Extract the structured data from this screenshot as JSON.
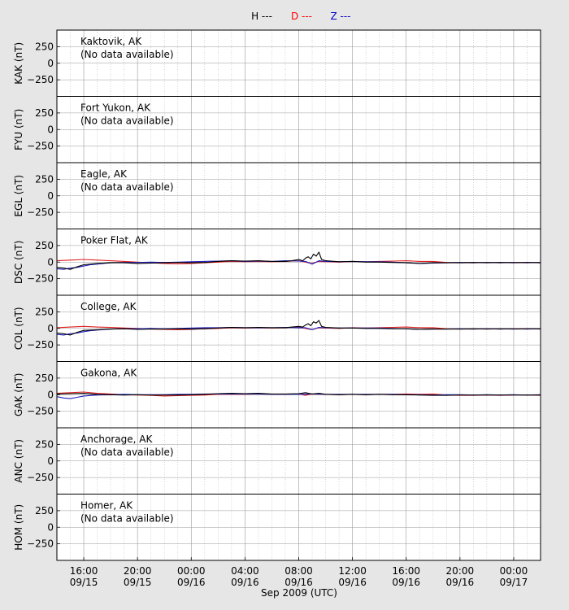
{
  "legend": [
    {
      "label": "H ---",
      "color": "#000000"
    },
    {
      "label": "D ---",
      "color": "#ff0000"
    },
    {
      "label": "Z ---",
      "color": "#0000cc"
    }
  ],
  "colors": {
    "H": "#000000",
    "D": "#e02020",
    "Z": "#2020c0",
    "background": "#e6e6e6",
    "plot": "#ffffff"
  },
  "xlabel": "Sep 2009 (UTC)",
  "no_data_text": "(No data available)",
  "chart_data": {
    "type": "line",
    "xlabel": "Sep 2009 (UTC)",
    "x_unit": "hours since 2009-09-15 00:00 UTC",
    "x_range": [
      14.0,
      50.0
    ],
    "x_ticks": [
      {
        "hour": 16,
        "time": "16:00",
        "date": "09/15"
      },
      {
        "hour": 20,
        "time": "20:00",
        "date": "09/15"
      },
      {
        "hour": 24,
        "time": "00:00",
        "date": "09/16"
      },
      {
        "hour": 28,
        "time": "04:00",
        "date": "09/16"
      },
      {
        "hour": 32,
        "time": "08:00",
        "date": "09/16"
      },
      {
        "hour": 36,
        "time": "12:00",
        "date": "09/16"
      },
      {
        "hour": 40,
        "time": "16:00",
        "date": "09/16"
      },
      {
        "hour": 44,
        "time": "20:00",
        "date": "09/16"
      },
      {
        "hour": 48,
        "time": "00:00",
        "date": "09/17"
      }
    ],
    "y_ticks": [
      250,
      0,
      -250
    ],
    "ylim": [
      -500,
      500
    ],
    "grid": true,
    "legend_position": "top-center",
    "panels": [
      {
        "station": "KAK",
        "name": "Kaktovik, AK",
        "ylabel": "KAK (nT)",
        "no_data": true,
        "series": []
      },
      {
        "station": "FYU",
        "name": "Fort Yukon, AK",
        "ylabel": "FYU (nT)",
        "no_data": true,
        "series": []
      },
      {
        "station": "EGL",
        "name": "Eagle, AK",
        "ylabel": "EGL (nT)",
        "no_data": true,
        "series": []
      },
      {
        "station": "DSC",
        "name": "Poker Flat, AK",
        "ylabel": "DSC (nT)",
        "no_data": false,
        "series": [
          {
            "name": "H",
            "x": [
              14.0,
              14.5,
              15.0,
              15.5,
              16.0,
              17.0,
              18.0,
              19.0,
              20.0,
              21.0,
              22.0,
              23.0,
              24.0,
              25.0,
              26.0,
              27.0,
              28.0,
              29.0,
              30.0,
              31.0,
              31.5,
              32.0,
              32.3,
              32.5,
              32.7,
              32.9,
              33.1,
              33.3,
              33.5,
              33.7,
              34.0,
              35.0,
              36.0,
              37.0,
              38.0,
              39.0,
              40.0,
              41.0,
              42.0,
              43.0,
              44.0,
              45.0,
              46.0,
              47.0,
              48.0,
              49.0,
              50.0
            ],
            "y": [
              -80,
              -90,
              -110,
              -70,
              -40,
              -20,
              -10,
              -10,
              -20,
              -15,
              -10,
              -5,
              -10,
              -5,
              10,
              20,
              15,
              20,
              10,
              10,
              20,
              40,
              20,
              60,
              80,
              50,
              120,
              90,
              150,
              40,
              20,
              5,
              10,
              0,
              0,
              -5,
              -10,
              -20,
              -10,
              -10,
              -10,
              -5,
              -10,
              -5,
              -10,
              -5,
              -10
            ]
          },
          {
            "name": "D",
            "x": [
              14.0,
              15.0,
              16.0,
              17.0,
              18.0,
              19.0,
              20.0,
              21.0,
              22.0,
              23.0,
              24.0,
              25.0,
              26.0,
              27.0,
              28.0,
              29.0,
              30.0,
              31.0,
              32.0,
              32.5,
              33.0,
              33.5,
              34.0,
              35.0,
              36.0,
              37.0,
              38.0,
              39.0,
              40.0,
              41.0,
              42.0,
              43.0,
              44.0,
              45.0,
              46.0,
              47.0,
              48.0,
              49.0,
              50.0
            ],
            "y": [
              20,
              30,
              40,
              30,
              20,
              10,
              0,
              -10,
              -20,
              -25,
              -20,
              -10,
              0,
              10,
              5,
              10,
              5,
              10,
              20,
              0,
              -20,
              10,
              5,
              0,
              10,
              5,
              10,
              15,
              20,
              10,
              10,
              -5,
              -10,
              -10,
              -5,
              -10,
              -5,
              -5,
              -10
            ]
          },
          {
            "name": "Z",
            "x": [
              14.0,
              14.5,
              15.0,
              15.5,
              16.0,
              16.5,
              17.0,
              18.0,
              19.0,
              20.0,
              21.0,
              22.0,
              23.0,
              24.0,
              25.0,
              26.0,
              27.0,
              28.0,
              29.0,
              30.0,
              31.0,
              32.0,
              32.5,
              33.0,
              33.5,
              34.0,
              35.0,
              36.0,
              37.0,
              38.0,
              39.0,
              40.0,
              41.0,
              42.0,
              43.0,
              44.0,
              45.0,
              46.0,
              47.0,
              48.0,
              49.0,
              50.0
            ],
            "y": [
              -100,
              -110,
              -90,
              -80,
              -60,
              -40,
              -30,
              -10,
              -5,
              -5,
              0,
              -5,
              0,
              5,
              10,
              15,
              20,
              10,
              15,
              10,
              20,
              15,
              10,
              -30,
              20,
              10,
              5,
              10,
              5,
              5,
              0,
              -10,
              -20,
              -15,
              -10,
              -5,
              -10,
              -5,
              -10,
              -5,
              -10,
              -5
            ]
          }
        ]
      },
      {
        "station": "COL",
        "name": "College, AK",
        "ylabel": "COL (nT)",
        "no_data": false,
        "series": [
          {
            "name": "H",
            "x": [
              14.0,
              14.5,
              15.0,
              15.5,
              16.0,
              17.0,
              18.0,
              19.0,
              20.0,
              21.0,
              22.0,
              23.0,
              24.0,
              25.0,
              26.0,
              27.0,
              28.0,
              29.0,
              30.0,
              31.0,
              31.5,
              32.0,
              32.3,
              32.5,
              32.7,
              32.9,
              33.1,
              33.3,
              33.5,
              33.7,
              34.0,
              35.0,
              36.0,
              37.0,
              38.0,
              39.0,
              40.0,
              41.0,
              42.0,
              43.0,
              44.0,
              45.0,
              46.0,
              47.0,
              48.0,
              49.0,
              50.0
            ],
            "y": [
              -70,
              -80,
              -100,
              -60,
              -30,
              -20,
              -10,
              -5,
              -15,
              -10,
              -10,
              -5,
              -10,
              -5,
              5,
              15,
              10,
              15,
              10,
              10,
              20,
              30,
              20,
              50,
              70,
              40,
              100,
              80,
              120,
              30,
              15,
              5,
              5,
              0,
              0,
              -5,
              -5,
              -15,
              -10,
              -10,
              -10,
              -5,
              -10,
              -5,
              -10,
              -5,
              -5
            ]
          },
          {
            "name": "D",
            "x": [
              14.0,
              15.0,
              16.0,
              17.0,
              18.0,
              19.0,
              20.0,
              21.0,
              22.0,
              23.0,
              24.0,
              25.0,
              26.0,
              27.0,
              28.0,
              29.0,
              30.0,
              31.0,
              32.0,
              32.5,
              33.0,
              33.5,
              34.0,
              35.0,
              36.0,
              37.0,
              38.0,
              39.0,
              40.0,
              41.0,
              42.0,
              43.0,
              44.0,
              45.0,
              46.0,
              47.0,
              48.0,
              49.0,
              50.0
            ],
            "y": [
              10,
              20,
              30,
              20,
              15,
              5,
              0,
              -10,
              -15,
              -20,
              -15,
              -5,
              0,
              10,
              5,
              10,
              5,
              10,
              20,
              0,
              -20,
              10,
              5,
              0,
              10,
              5,
              10,
              15,
              20,
              10,
              10,
              -5,
              -10,
              -10,
              -5,
              -10,
              -5,
              -5,
              -10
            ]
          },
          {
            "name": "Z",
            "x": [
              14.0,
              14.5,
              15.0,
              15.5,
              16.0,
              16.5,
              17.0,
              18.0,
              19.0,
              20.0,
              21.0,
              22.0,
              23.0,
              24.0,
              25.0,
              26.0,
              27.0,
              28.0,
              29.0,
              30.0,
              31.0,
              32.0,
              32.5,
              33.0,
              33.5,
              34.0,
              35.0,
              36.0,
              37.0,
              38.0,
              39.0,
              40.0,
              41.0,
              42.0,
              43.0,
              44.0,
              45.0,
              46.0,
              47.0,
              48.0,
              49.0,
              50.0
            ],
            "y": [
              -90,
              -100,
              -80,
              -70,
              -50,
              -35,
              -25,
              -10,
              -5,
              -5,
              0,
              -5,
              0,
              5,
              10,
              10,
              15,
              10,
              10,
              10,
              15,
              10,
              10,
              -20,
              15,
              10,
              5,
              5,
              5,
              5,
              0,
              -5,
              -15,
              -10,
              -10,
              -5,
              -10,
              -5,
              -10,
              -5,
              -10,
              -5
            ]
          }
        ]
      },
      {
        "station": "GAK",
        "name": "Gakona, AK",
        "ylabel": "GAK (nT)",
        "no_data": false,
        "series": [
          {
            "name": "H",
            "x": [
              14.0,
              15.0,
              16.0,
              17.0,
              18.0,
              19.0,
              20.0,
              21.0,
              22.0,
              23.0,
              24.0,
              25.0,
              26.0,
              27.0,
              28.0,
              29.0,
              30.0,
              31.0,
              32.0,
              32.5,
              33.0,
              33.5,
              34.0,
              35.0,
              36.0,
              37.0,
              38.0,
              39.0,
              40.0,
              41.0,
              42.0,
              43.0,
              44.0,
              45.0,
              46.0,
              47.0,
              48.0,
              49.0,
              50.0
            ],
            "y": [
              10,
              15,
              20,
              5,
              0,
              -5,
              0,
              -5,
              -5,
              -5,
              0,
              5,
              15,
              20,
              15,
              20,
              10,
              10,
              15,
              30,
              10,
              20,
              5,
              0,
              5,
              0,
              5,
              0,
              0,
              -5,
              -10,
              -10,
              -5,
              -5,
              -5,
              -5,
              -5,
              -5,
              -5
            ]
          },
          {
            "name": "D",
            "x": [
              14.0,
              15.0,
              16.0,
              17.0,
              18.0,
              19.0,
              20.0,
              21.0,
              22.0,
              23.0,
              24.0,
              25.0,
              26.0,
              27.0,
              28.0,
              29.0,
              30.0,
              31.0,
              32.0,
              32.5,
              33.0,
              33.5,
              34.0,
              35.0,
              36.0,
              37.0,
              38.0,
              39.0,
              40.0,
              41.0,
              42.0,
              43.0,
              44.0,
              45.0,
              46.0,
              47.0,
              48.0,
              49.0,
              50.0
            ],
            "y": [
              20,
              30,
              40,
              20,
              10,
              0,
              -5,
              -10,
              -20,
              -15,
              -10,
              -5,
              5,
              5,
              5,
              10,
              5,
              5,
              10,
              -10,
              10,
              5,
              5,
              0,
              5,
              0,
              5,
              5,
              10,
              5,
              10,
              -5,
              -10,
              -10,
              -5,
              -10,
              -5,
              -5,
              -10
            ]
          },
          {
            "name": "Z",
            "x": [
              14.0,
              14.5,
              15.0,
              15.5,
              16.0,
              17.0,
              18.0,
              19.0,
              20.0,
              21.0,
              22.0,
              23.0,
              24.0,
              25.0,
              26.0,
              27.0,
              28.0,
              29.0,
              30.0,
              31.0,
              32.0,
              33.0,
              34.0,
              35.0,
              36.0,
              37.0,
              38.0,
              39.0,
              40.0,
              41.0,
              42.0,
              43.0,
              44.0,
              45.0,
              46.0,
              47.0,
              48.0,
              49.0,
              50.0
            ],
            "y": [
              -30,
              -50,
              -60,
              -40,
              -20,
              -5,
              0,
              5,
              0,
              0,
              0,
              5,
              5,
              10,
              10,
              10,
              10,
              10,
              5,
              5,
              5,
              10,
              5,
              5,
              5,
              5,
              5,
              5,
              0,
              0,
              -5,
              0,
              0,
              -5,
              0,
              -5,
              0,
              -5,
              0
            ]
          }
        ]
      },
      {
        "station": "ANC",
        "name": "Anchorage, AK",
        "ylabel": "ANC (nT)",
        "no_data": true,
        "series": []
      },
      {
        "station": "HOM",
        "name": "Homer, AK",
        "ylabel": "HOM (nT)",
        "no_data": true,
        "series": []
      }
    ]
  }
}
